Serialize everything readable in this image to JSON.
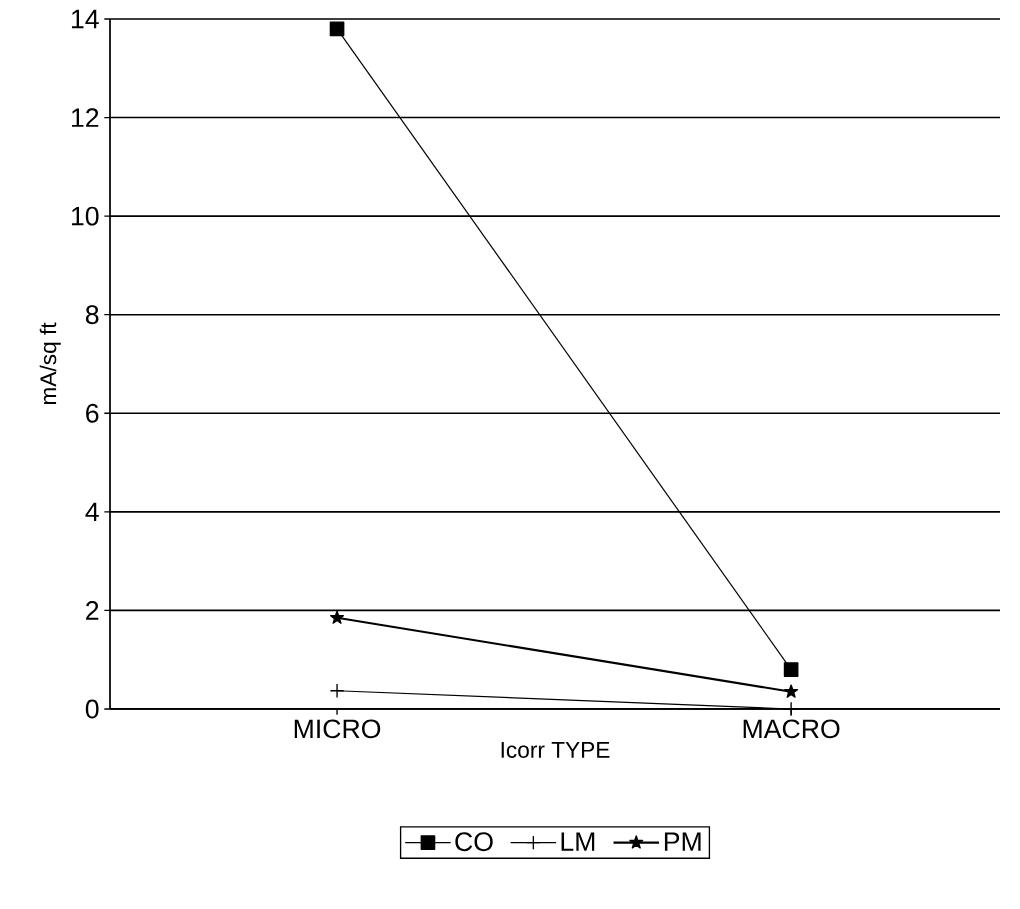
{
  "chart_data": {
    "type": "line",
    "xlabel": "Icorr TYPE",
    "ylabel": "mA/sq ft",
    "categories": [
      "MICRO",
      "MACRO"
    ],
    "series": [
      {
        "name": "CO",
        "color": "#000000",
        "marker": "square",
        "values": [
          13.8,
          0.8
        ]
      },
      {
        "name": "LM",
        "color": "#000000",
        "marker": "cross",
        "values": [
          0.37,
          0
        ]
      },
      {
        "name": "PM",
        "color": "#000000",
        "marker": "star",
        "values": [
          1.85,
          0.35
        ]
      }
    ],
    "ylim": [
      0,
      14
    ],
    "yticks": [
      0,
      2,
      4,
      6,
      8,
      10,
      12,
      14
    ],
    "grid": "y",
    "legend": "bottom"
  }
}
